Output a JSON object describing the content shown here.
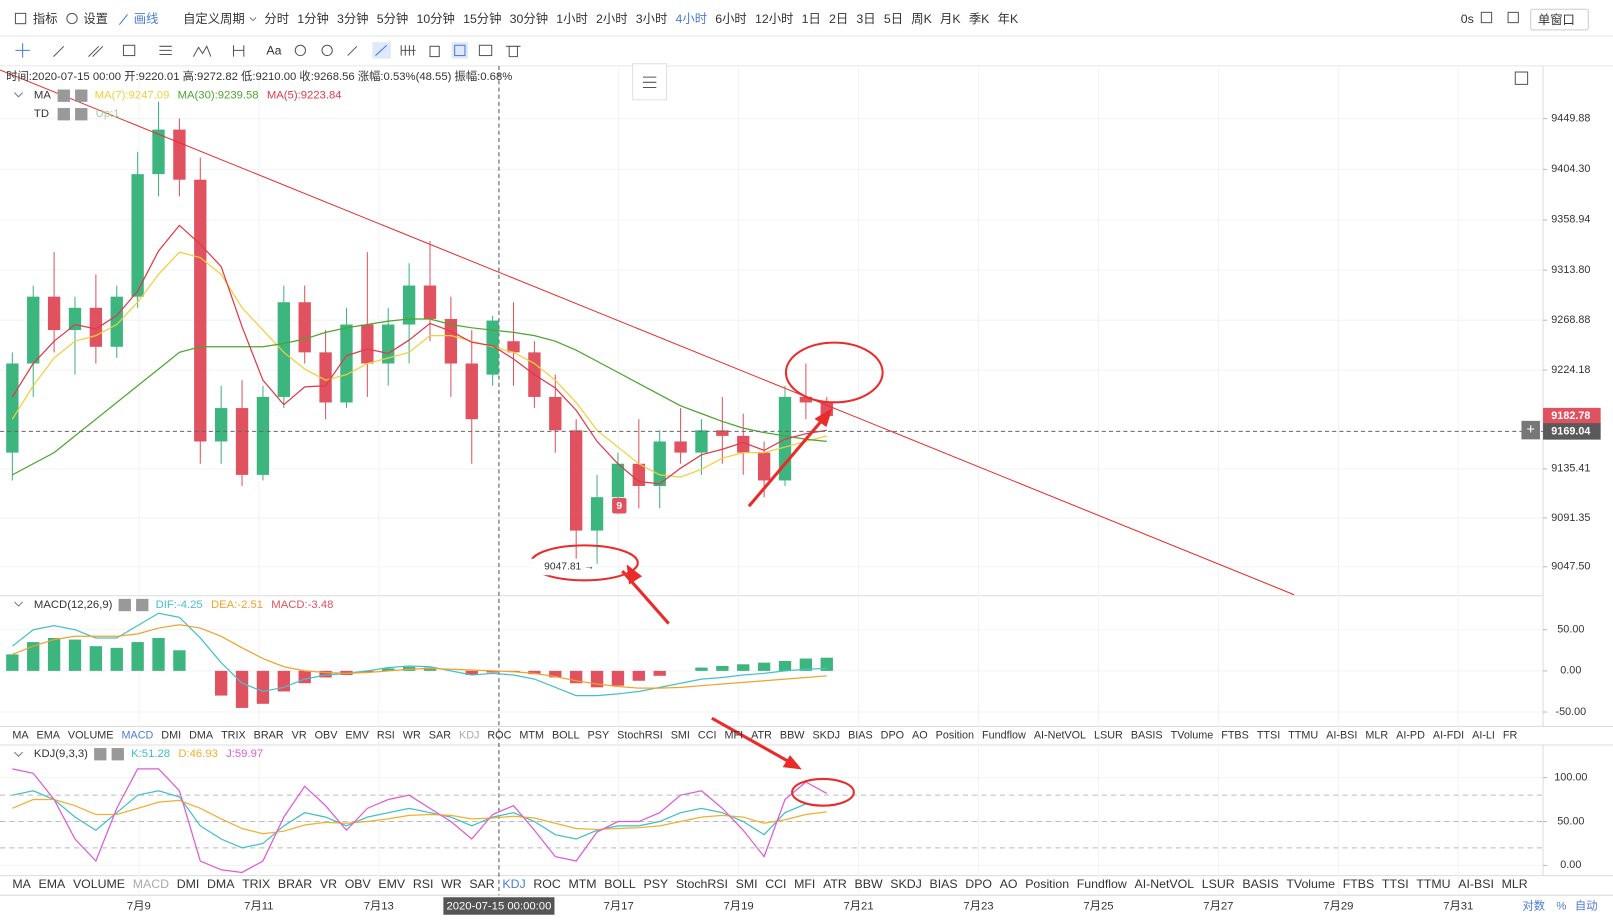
{
  "toolbar": {
    "tools": [
      "指标",
      "设置",
      "画线"
    ],
    "active_tool": "画线",
    "custom": "自定义周期",
    "periods": [
      "分时",
      "1分钟",
      "3分钟",
      "5分钟",
      "10分钟",
      "15分钟",
      "30分钟",
      "1小时",
      "2小时",
      "3小时",
      "4小时",
      "6小时",
      "12小时",
      "1日",
      "2日",
      "3日",
      "5日",
      "周K",
      "月K",
      "季K",
      "年K"
    ],
    "active_period": "4小时",
    "countdown": "0s",
    "window": "单窗口",
    "text_tool": "Aa"
  },
  "chart_data": [
    {
      "type": "candlestick",
      "info": "时间:2020-07-15 00:00 开:9220.01 高:9272.82 低:9210.00 收:9268.56 涨幅:0.53%(48.55) 振幅:0.68%",
      "label": "MA",
      "td": "TD",
      "td_value": "Up:1",
      "up_color": "#3db57f",
      "down_color": "#e0525f",
      "open": [
        9150,
        9230,
        9290,
        9260,
        9280,
        9245,
        9290,
        9400,
        9440,
        9395,
        9160,
        9190,
        9130,
        9200,
        9285,
        9240,
        9195,
        9265,
        9230,
        9265,
        9300,
        9270,
        9230,
        9220.01,
        9250,
        9240,
        9200,
        9170,
        9080,
        9110,
        9140,
        9120,
        9160,
        9150,
        9170,
        9165,
        9150,
        9125,
        9200,
        9195
      ],
      "high": [
        9240,
        9300,
        9330,
        9290,
        9310,
        9300,
        9420,
        9465,
        9450,
        9415,
        9210,
        9215,
        9210,
        9300,
        9300,
        9260,
        9280,
        9330,
        9280,
        9320,
        9340,
        9290,
        9260,
        9272.82,
        9285,
        9250,
        9220,
        9180,
        9130,
        9150,
        9180,
        9170,
        9190,
        9180,
        9200,
        9185,
        9160,
        9210,
        9230,
        9200
      ],
      "low": [
        9125,
        9200,
        9240,
        9220,
        9230,
        9235,
        9280,
        9380,
        9380,
        9140,
        9140,
        9120,
        9125,
        9190,
        9230,
        9180,
        9190,
        9200,
        9210,
        9230,
        9250,
        9200,
        9140,
        9210.0,
        9210,
        9190,
        9150,
        9047.81,
        9050,
        9095,
        9100,
        9100,
        9140,
        9130,
        9140,
        9130,
        9110,
        9120,
        9180,
        9175
      ],
      "close": [
        9230,
        9290,
        9260,
        9280,
        9245,
        9290,
        9400,
        9440,
        9395,
        9160,
        9190,
        9130,
        9200,
        9285,
        9240,
        9195,
        9265,
        9230,
        9265,
        9300,
        9270,
        9230,
        9180,
        9268.56,
        9240,
        9200,
        9170,
        9080,
        9110,
        9140,
        9120,
        9160,
        9150,
        9170,
        9165,
        9150,
        9125,
        9200,
        9195,
        9182.78
      ],
      "series": [
        {
          "name": "MA(7):9247.09",
          "color": "#f2cf3a",
          "values": [
            9180,
            9210,
            9235,
            9250,
            9255,
            9265,
            9285,
            9310,
            9330,
            9325,
            9310,
            9280,
            9260,
            9240,
            9225,
            9215,
            9220,
            9230,
            9235,
            9240,
            9255,
            9255,
            9250,
            9245,
            9240,
            9230,
            9215,
            9195,
            9170,
            9155,
            9140,
            9130,
            9128,
            9135,
            9145,
            9150,
            9150,
            9155,
            9160,
            9165
          ]
        },
        {
          "name": "MA(30):9239.58",
          "color": "#4ca52e",
          "values": [
            9130,
            9140,
            9150,
            9165,
            9180,
            9195,
            9210,
            9225,
            9240,
            9245,
            9245,
            9245,
            9245,
            9248,
            9252,
            9258,
            9262,
            9265,
            9268,
            9270,
            9270,
            9265,
            9262,
            9260,
            9258,
            9255,
            9250,
            9242,
            9232,
            9222,
            9212,
            9202,
            9192,
            9185,
            9178,
            9172,
            9168,
            9165,
            9162,
            9160
          ]
        },
        {
          "name": "MA(5):9223.84",
          "color": "#e0394a",
          "values": [
            9200,
            9230,
            9250,
            9265,
            9261,
            9273,
            9295,
            9331,
            9354,
            9337,
            9317,
            9263,
            9215,
            9193,
            9209,
            9210,
            9237,
            9243,
            9239,
            9251,
            9266,
            9259,
            9249,
            9246,
            9234,
            9220,
            9208,
            9188,
            9160,
            9140,
            9124,
            9122,
            9136,
            9148,
            9153,
            9159,
            9152,
            9162,
            9167,
            9170
          ]
        }
      ],
      "ylim": [
        9022.4,
        9496.3
      ],
      "yticks": [
        9449.88,
        {
          "value": 9404.3,
          "label": "9404.30"
        },
        9358.94,
        {
          "value": 9313.8,
          "label": "9313.80"
        },
        9268.88,
        9224.18,
        9135.41,
        9091.35,
        {
          "value": 9047.5,
          "label": "9047.50"
        }
      ],
      "grid": true,
      "price_tags": [
        {
          "value": 9182.78,
          "color": "#e0525f"
        },
        {
          "value": 9169.04,
          "color": "#5a5a5a",
          "dashed_line": true
        }
      ],
      "low_label": "9047.81 →",
      "marker": "9"
    },
    {
      "type": "macd",
      "title": "MACD(12,26,9)",
      "up_color": "#3db57f",
      "down_color": "#e0525f",
      "series": [
        {
          "name": "DIF:-4.25",
          "color": "#45c1c8",
          "values": [
            30,
            50,
            55,
            50,
            40,
            40,
            55,
            70,
            65,
            40,
            10,
            -15,
            -25,
            -20,
            -10,
            -5,
            -3,
            0,
            4,
            6,
            5,
            0,
            -5,
            -3,
            -5,
            -10,
            -20,
            -30,
            -30,
            -28,
            -25,
            -20,
            -15,
            -10,
            -8,
            -5,
            -3,
            0,
            2,
            3
          ]
        },
        {
          "name": "DEA:-2.51",
          "color": "#f0a22b",
          "values": [
            20,
            30,
            38,
            42,
            42,
            42,
            45,
            52,
            56,
            52,
            42,
            28,
            15,
            5,
            0,
            -2,
            -3,
            -2,
            0,
            2,
            3,
            2,
            1,
            0,
            -1,
            -3,
            -7,
            -12,
            -16,
            -19,
            -21,
            -21,
            -20,
            -18,
            -16,
            -14,
            -12,
            -10,
            -8,
            -6
          ]
        },
        {
          "name": "MACD:-3.48",
          "color": "#e0525f",
          "style": "bar",
          "values": [
            20,
            35,
            40,
            38,
            30,
            28,
            35,
            40,
            25,
            0,
            -30,
            -45,
            -40,
            -25,
            -15,
            -8,
            -5,
            -2,
            3,
            5,
            4,
            0,
            -5,
            -2,
            -1,
            -4,
            -8,
            -15,
            -20,
            -18,
            -12,
            -6,
            0,
            4,
            6,
            8,
            10,
            12,
            15,
            16
          ]
        }
      ],
      "ylim": [
        -66.25,
        90
      ],
      "yticks": [
        {
          "value": 50,
          "label": "50.00"
        },
        {
          "value": 0,
          "label": "0.00"
        },
        {
          "value": -50,
          "label": "-50.00"
        }
      ]
    },
    {
      "type": "kdj",
      "title": "KDJ(9,3,3)",
      "series": [
        {
          "name": "K:51.28",
          "color": "#3fbfc6",
          "values": [
            80,
            85,
            75,
            55,
            40,
            60,
            80,
            85,
            78,
            45,
            30,
            20,
            25,
            45,
            60,
            55,
            45,
            55,
            60,
            65,
            60,
            55,
            45,
            55,
            60,
            50,
            35,
            30,
            40,
            45,
            45,
            50,
            60,
            65,
            60,
            50,
            35,
            60,
            70,
            68
          ]
        },
        {
          "name": "D:46.93",
          "color": "#f0b030",
          "values": [
            65,
            75,
            75,
            68,
            58,
            58,
            65,
            72,
            74,
            65,
            53,
            42,
            36,
            39,
            46,
            49,
            48,
            50,
            53,
            57,
            58,
            57,
            53,
            54,
            56,
            54,
            48,
            42,
            41,
            42,
            43,
            45,
            50,
            55,
            57,
            55,
            48,
            52,
            58,
            61
          ]
        },
        {
          "name": "J:59.97",
          "color": "#e05ad6",
          "values": [
            110,
            105,
            75,
            30,
            5,
            65,
            110,
            110,
            85,
            5,
            -5,
            -8,
            5,
            55,
            90,
            68,
            40,
            65,
            75,
            80,
            65,
            50,
            30,
            58,
            68,
            40,
            10,
            5,
            38,
            50,
            50,
            60,
            80,
            85,
            65,
            40,
            10,
            75,
            95,
            82
          ]
        }
      ],
      "levels": [
        20,
        50,
        80
      ],
      "ylim": [
        -10.5,
        136
      ],
      "yticks": [
        {
          "value": 100,
          "label": "100.00"
        },
        {
          "value": 50,
          "label": "50.00"
        },
        {
          "value": 0,
          "label": "0.00"
        }
      ]
    }
  ],
  "indicator_tabs": [
    {
      "items": [
        "MA",
        "EMA",
        "VOLUME",
        "MACD",
        "DMI",
        "DMA",
        "TRIX",
        "BRAR",
        "VR",
        "OBV",
        "EMV",
        "RSI",
        "WR",
        "SAR",
        "KDJ",
        "ROC",
        "MTM",
        "BOLL",
        "PSY",
        "StochRSI",
        "SMI",
        "CCI",
        "MFI",
        "ATR",
        "BBW",
        "SKDJ",
        "BIAS",
        "DPO",
        "AO",
        "Position",
        "Fundflow",
        "AI-NetVOL",
        "LSUR",
        "BASIS",
        "TVolume",
        "FTBS",
        "TTSI",
        "TTMU",
        "AI-BSI",
        "MLR",
        "AI-PD",
        "AI-FDI",
        "AI-LI",
        "FR"
      ],
      "active": "MACD",
      "muted": "KDJ"
    },
    {
      "items": [
        "MA",
        "EMA",
        "VOLUME",
        "MACD",
        "DMI",
        "DMA",
        "TRIX",
        "BRAR",
        "VR",
        "OBV",
        "EMV",
        "RSI",
        "WR",
        "SAR",
        "KDJ",
        "ROC",
        "MTM",
        "BOLL",
        "PSY",
        "StochRSI",
        "SMI",
        "CCI",
        "MFI",
        "ATR",
        "BBW",
        "SKDJ",
        "BIAS",
        "DPO",
        "AO",
        "Position",
        "Fundflow",
        "AI-NetVOL",
        "LSUR",
        "BASIS",
        "TVolume",
        "FTBS",
        "TTSI",
        "TTMU",
        "AI-BSI",
        "MLR"
      ],
      "active": "KDJ",
      "muted": "MACD"
    }
  ],
  "time_axis": [
    "7月9",
    "7月11",
    "7月13",
    "2020-07-15 00:00:00",
    "7月17",
    "7月19",
    "7月21",
    "7月23",
    "7月25",
    "7月27",
    "7月29",
    "7月31"
  ],
  "scale_options": [
    "对数",
    "%",
    "自动"
  ]
}
